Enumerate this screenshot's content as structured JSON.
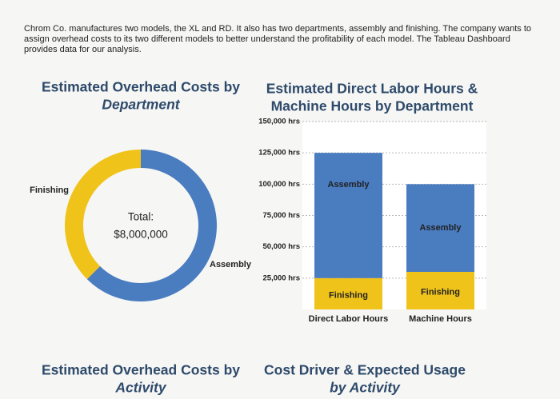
{
  "intro": "Chrom Co. manufactures two models, the XL and RD. It also has two departments, assembly and finishing. The company wants to assign overhead costs to its two different models to better understand the profitability of each model. The Tableau Dashboard provides data for our analysis.",
  "chart_data": [
    {
      "type": "donut",
      "title": [
        "Estimated Overhead Costs by",
        "Department"
      ],
      "categories": [
        "Assembly",
        "Finishing"
      ],
      "values": [
        5000000,
        3000000
      ],
      "colors": [
        "#4a7cc0",
        "#f0c31a"
      ],
      "center_text": [
        "Total:",
        "$8,000,000"
      ]
    },
    {
      "type": "stacked-bar",
      "title": [
        "Estimated Direct Labor Hours &",
        "Machine Hours by Department"
      ],
      "categories": [
        "Direct Labor Hours",
        "Machine Hours"
      ],
      "series": [
        {
          "name": "Finishing",
          "color": "#f0c31a",
          "values": [
            25000,
            30000
          ]
        },
        {
          "name": "Assembly",
          "color": "#4a7cc0",
          "values": [
            100000,
            70000
          ]
        }
      ],
      "ylim": [
        0,
        150000
      ],
      "yticks": [
        {
          "value": 25000,
          "label": "25,000 hrs"
        },
        {
          "value": 50000,
          "label": "50,000 hrs"
        },
        {
          "value": 75000,
          "label": "75,000 hrs"
        },
        {
          "value": 100000,
          "label": "100,000 hrs"
        },
        {
          "value": 125000,
          "label": "125,000 hrs"
        },
        {
          "value": 150000,
          "label": "150,000 hrs"
        }
      ],
      "grid": true
    }
  ],
  "bottom_headings": [
    [
      "Estimated Overhead Costs by",
      "Activity"
    ],
    [
      "Cost Driver & Expected Usage",
      "by Activity"
    ]
  ]
}
